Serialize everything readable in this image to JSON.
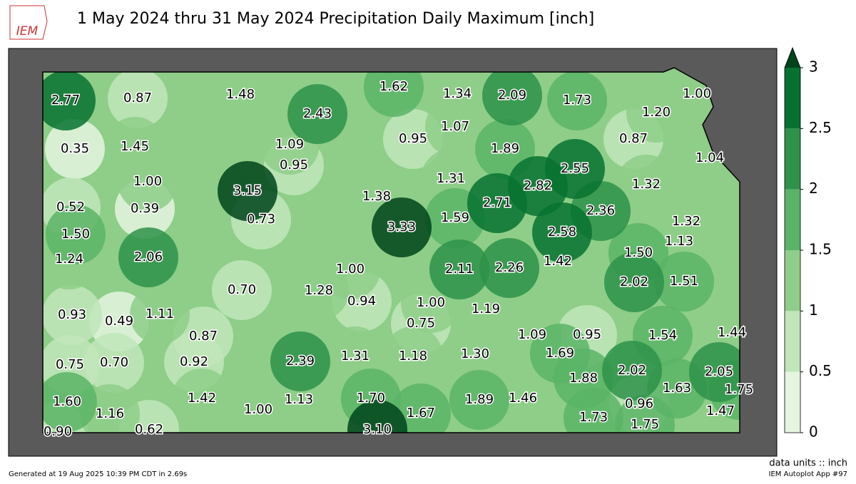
{
  "title": "1 May 2024 thru 31 May 2024 Precipitation Daily Maximum [inch]",
  "logo": "IEM",
  "stations": {
    "values": [
      2.77,
      0.87,
      1.48,
      2.43,
      1.62,
      1.34,
      2.09,
      1.73,
      1.0,
      1.2,
      0.35,
      1.45,
      1.09,
      0.95,
      0.95,
      1.07,
      1.89,
      0.87,
      1.04,
      2.55,
      1.0,
      3.15,
      1.31,
      2.82,
      1.32,
      0.52,
      0.39,
      1.38,
      2.71,
      2.36,
      0.73,
      3.33,
      1.59,
      2.58,
      1.32,
      1.5,
      1.13,
      1.24,
      2.06,
      1.42,
      1.5,
      1.0,
      2.11,
      2.26,
      2.02,
      1.51,
      0.7,
      1.28,
      0.94,
      1.0,
      1.19,
      0.93,
      0.49,
      1.11,
      0.75,
      0.87,
      1.09,
      0.95,
      1.54,
      1.44,
      2.39,
      1.31,
      1.18,
      1.3,
      1.69,
      0.75,
      0.7,
      0.92,
      1.88,
      2.02,
      2.05,
      1.63,
      1.75,
      1.6,
      1.42,
      1.13,
      1.7,
      1.89,
      1.46,
      0.96,
      1.16,
      1.0,
      1.67,
      1.73,
      1.47,
      0.9,
      0.62,
      3.1,
      1.75
    ],
    "value_labels": [
      "2.77",
      "0.87",
      "1.48",
      "2.43",
      "1.62",
      "1.34",
      "2.09",
      "1.73",
      "1.00",
      "1.20",
      "0.35",
      "1.45",
      "1.09",
      "0.95",
      "0.95",
      "1.07",
      "1.89",
      "0.87",
      "1.04",
      "2.55",
      "1.00",
      "3.15",
      "1.31",
      "2.82",
      "1.32",
      "0.52",
      "0.39",
      "1.38",
      "2.71",
      "2.36",
      "0.73",
      "3.33",
      "1.59",
      "2.58",
      "1.32",
      "1.50",
      "1.13",
      "1.24",
      "2.06",
      "1.42",
      "1.50",
      "1.00",
      "2.11",
      "2.26",
      "2.02",
      "1.51",
      "0.70",
      "1.28",
      "0.94",
      "1.00",
      "1.19",
      "0.93",
      "0.49",
      "1.11",
      "0.75",
      "0.87",
      "1.09",
      "0.95",
      "1.54",
      "1.44",
      "2.39",
      "1.31",
      "1.18",
      "1.30",
      "1.69",
      "0.75",
      "0.70",
      "0.92",
      "1.88",
      "2.02",
      "2.05",
      "1.63",
      "1.75",
      "1.60",
      "1.42",
      "1.13",
      "1.70",
      "1.89",
      "1.46",
      "0.96",
      "1.16",
      "1.00",
      "1.67",
      "1.73",
      "1.47",
      "0.90",
      "0.62",
      "3.10",
      "1.75"
    ]
  },
  "colorbar": {
    "lim": [
      0,
      3
    ],
    "ticks": [
      0,
      0.5,
      1,
      1.5,
      2,
      2.5,
      3
    ],
    "colors": [
      "#e5f5e0",
      "#c1e6ba",
      "#8ece88",
      "#5bb466",
      "#2e9249",
      "#077230"
    ],
    "over_color": "#00441b"
  },
  "units_note": "data units :: inch",
  "footer_left": "Generated at 19 Aug 2025 10:39 PM CDT in 2.69s",
  "footer_right": "IEM Autoplot App #97"
}
